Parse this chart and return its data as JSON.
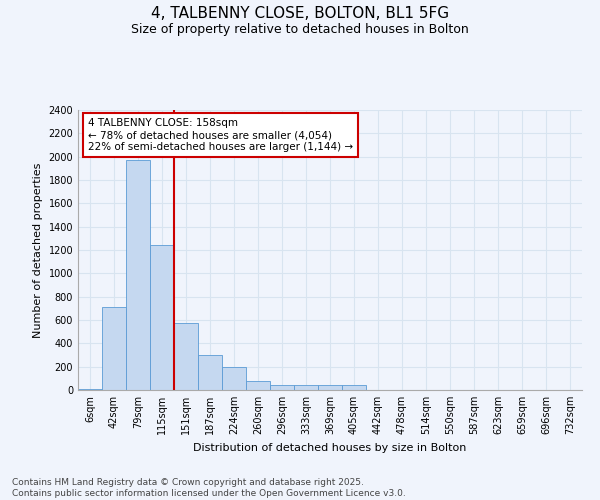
{
  "title1": "4, TALBENNY CLOSE, BOLTON, BL1 5FG",
  "title2": "Size of property relative to detached houses in Bolton",
  "xlabel": "Distribution of detached houses by size in Bolton",
  "ylabel": "Number of detached properties",
  "categories": [
    "6sqm",
    "42sqm",
    "79sqm",
    "115sqm",
    "151sqm",
    "187sqm",
    "224sqm",
    "260sqm",
    "296sqm",
    "333sqm",
    "369sqm",
    "405sqm",
    "442sqm",
    "478sqm",
    "514sqm",
    "550sqm",
    "587sqm",
    "623sqm",
    "659sqm",
    "696sqm",
    "732sqm"
  ],
  "values": [
    10,
    710,
    1970,
    1240,
    575,
    300,
    200,
    80,
    40,
    40,
    40,
    40,
    0,
    0,
    0,
    0,
    0,
    0,
    0,
    0,
    0
  ],
  "bar_color": "#c5d8f0",
  "bar_edge_color": "#5b9bd5",
  "bg_color": "#f0f4fc",
  "plot_bg_color": "#f0f4fc",
  "grid_color": "#d8e4f0",
  "vline_color": "#cc0000",
  "vline_x_idx": 4,
  "annotation_line1": "4 TALBENNY CLOSE: 158sqm",
  "annotation_line2": "← 78% of detached houses are smaller (4,054)",
  "annotation_line3": "22% of semi-detached houses are larger (1,144) →",
  "annotation_box_edgecolor": "#cc0000",
  "ylim": [
    0,
    2400
  ],
  "yticks": [
    0,
    200,
    400,
    600,
    800,
    1000,
    1200,
    1400,
    1600,
    1800,
    2000,
    2200,
    2400
  ],
  "footer1": "Contains HM Land Registry data © Crown copyright and database right 2025.",
  "footer2": "Contains public sector information licensed under the Open Government Licence v3.0.",
  "title1_fontsize": 11,
  "title2_fontsize": 9,
  "ylabel_fontsize": 8,
  "xlabel_fontsize": 8,
  "tick_fontsize": 7,
  "footer_fontsize": 6.5
}
